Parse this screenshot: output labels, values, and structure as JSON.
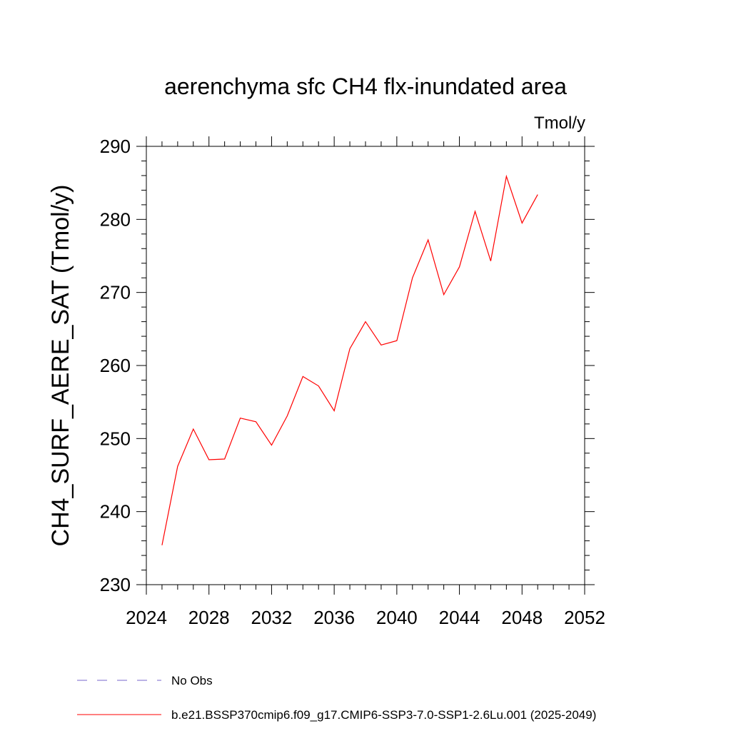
{
  "chart_data": {
    "type": "line",
    "title": "aerenchyma sfc CH4 flx-inundated area",
    "units": "Tmol/y",
    "ylabel": "CH4_SURF_AERE_SAT  (Tmol/y)",
    "xlabel": "",
    "xlim": [
      2024,
      2052
    ],
    "ylim": [
      230,
      290
    ],
    "x_ticks": [
      "2024",
      "2028",
      "2032",
      "2036",
      "2040",
      "2044",
      "2048",
      "2052"
    ],
    "y_ticks": [
      "230",
      "240",
      "250",
      "260",
      "270",
      "280",
      "290"
    ],
    "grid": false,
    "legend_position": "bottom",
    "series": [
      {
        "name": "b.e21.BSSP370cmip6.f09_g17.CMIP6-SSP3-7.0-SSP1-2.6Lu.001 (2025-2049)",
        "color": "#ff0000",
        "style": "solid",
        "x": [
          2025,
          2026,
          2027,
          2028,
          2029,
          2030,
          2031,
          2032,
          2033,
          2034,
          2035,
          2036,
          2037,
          2038,
          2039,
          2040,
          2041,
          2042,
          2043,
          2044,
          2045,
          2046,
          2047,
          2048,
          2049
        ],
        "values": [
          235.4,
          246.2,
          251.3,
          247.1,
          247.2,
          252.8,
          252.3,
          249.1,
          253.1,
          258.5,
          257.2,
          253.8,
          262.3,
          266.0,
          262.8,
          263.4,
          272.0,
          277.2,
          269.7,
          273.5,
          281.1,
          274.3,
          285.9,
          279.5,
          283.4
        ]
      },
      {
        "name": "No Obs",
        "color": "#7766cc",
        "style": "dashed",
        "x": [],
        "values": []
      }
    ]
  }
}
